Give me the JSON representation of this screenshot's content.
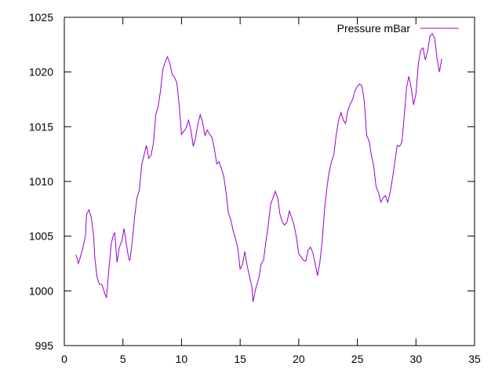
{
  "chart_data": {
    "type": "line",
    "title": "",
    "xlabel": "",
    "ylabel": "",
    "xlim": [
      0,
      35
    ],
    "ylim": [
      995,
      1025
    ],
    "xticks": [
      0,
      5,
      10,
      15,
      20,
      25,
      30,
      35
    ],
    "yticks": [
      995,
      1000,
      1005,
      1010,
      1015,
      1020,
      1025
    ],
    "x_tick_labels": [
      "0",
      "5",
      "10",
      "15",
      "20",
      "25",
      "30",
      "35"
    ],
    "y_tick_labels": [
      "995",
      "1000",
      "1005",
      "1010",
      "1015",
      "1020",
      "1025"
    ],
    "grid": false,
    "legend_position": "top-right",
    "series": [
      {
        "name": "Pressure mBar",
        "color": "#9400d3",
        "points": [
          [
            1.0,
            1003.3
          ],
          [
            1.2,
            1002.5
          ],
          [
            1.4,
            1003.2
          ],
          [
            1.6,
            1004.0
          ],
          [
            1.8,
            1005.0
          ],
          [
            1.9,
            1007.0
          ],
          [
            2.1,
            1007.4
          ],
          [
            2.3,
            1006.7
          ],
          [
            2.5,
            1005.0
          ],
          [
            2.6,
            1003.0
          ],
          [
            2.8,
            1001.2
          ],
          [
            3.0,
            1000.6
          ],
          [
            3.2,
            1000.6
          ],
          [
            3.5,
            999.6
          ],
          [
            3.6,
            999.4
          ],
          [
            3.8,
            1002.0
          ],
          [
            4.0,
            1004.3
          ],
          [
            4.2,
            1005.2
          ],
          [
            4.3,
            1005.3
          ],
          [
            4.5,
            1002.6
          ],
          [
            4.7,
            1004.0
          ],
          [
            4.9,
            1004.5
          ],
          [
            5.1,
            1005.7
          ],
          [
            5.3,
            1004.2
          ],
          [
            5.5,
            1002.9
          ],
          [
            5.6,
            1002.8
          ],
          [
            5.8,
            1004.6
          ],
          [
            6.0,
            1006.8
          ],
          [
            6.2,
            1008.5
          ],
          [
            6.4,
            1009.2
          ],
          [
            6.6,
            1011.5
          ],
          [
            6.8,
            1012.4
          ],
          [
            7.0,
            1013.3
          ],
          [
            7.2,
            1012.1
          ],
          [
            7.4,
            1012.4
          ],
          [
            7.6,
            1013.5
          ],
          [
            7.8,
            1016.1
          ],
          [
            8.0,
            1016.8
          ],
          [
            8.2,
            1018.2
          ],
          [
            8.4,
            1020.2
          ],
          [
            8.6,
            1020.9
          ],
          [
            8.8,
            1021.4
          ],
          [
            9.0,
            1020.8
          ],
          [
            9.2,
            1019.8
          ],
          [
            9.4,
            1019.5
          ],
          [
            9.6,
            1019.0
          ],
          [
            9.8,
            1017.0
          ],
          [
            10.0,
            1014.3
          ],
          [
            10.2,
            1014.6
          ],
          [
            10.4,
            1014.9
          ],
          [
            10.6,
            1015.6
          ],
          [
            10.8,
            1014.7
          ],
          [
            11.0,
            1013.2
          ],
          [
            11.2,
            1014.0
          ],
          [
            11.4,
            1015.3
          ],
          [
            11.6,
            1016.1
          ],
          [
            11.8,
            1015.4
          ],
          [
            12.0,
            1014.2
          ],
          [
            12.2,
            1014.7
          ],
          [
            12.4,
            1014.3
          ],
          [
            12.6,
            1014.0
          ],
          [
            12.8,
            1013.0
          ],
          [
            13.0,
            1011.6
          ],
          [
            13.2,
            1011.8
          ],
          [
            13.4,
            1011.2
          ],
          [
            13.6,
            1010.5
          ],
          [
            13.8,
            1009.0
          ],
          [
            14.0,
            1007.1
          ],
          [
            14.2,
            1006.5
          ],
          [
            14.4,
            1005.5
          ],
          [
            14.6,
            1004.8
          ],
          [
            14.8,
            1003.9
          ],
          [
            15.0,
            1002.0
          ],
          [
            15.2,
            1002.4
          ],
          [
            15.4,
            1003.6
          ],
          [
            15.6,
            1002.3
          ],
          [
            15.8,
            1001.3
          ],
          [
            16.0,
            1000.4
          ],
          [
            16.1,
            999.0
          ],
          [
            16.3,
            1000.1
          ],
          [
            16.6,
            1001.2
          ],
          [
            16.8,
            1002.5
          ],
          [
            17.0,
            1002.8
          ],
          [
            17.2,
            1004.5
          ],
          [
            17.4,
            1006.0
          ],
          [
            17.6,
            1007.9
          ],
          [
            17.8,
            1008.5
          ],
          [
            18.0,
            1009.1
          ],
          [
            18.2,
            1008.5
          ],
          [
            18.4,
            1007.0
          ],
          [
            18.6,
            1006.3
          ],
          [
            18.8,
            1006.0
          ],
          [
            19.0,
            1006.3
          ],
          [
            19.2,
            1007.3
          ],
          [
            19.4,
            1006.7
          ],
          [
            19.6,
            1006.0
          ],
          [
            19.8,
            1004.9
          ],
          [
            20.0,
            1003.4
          ],
          [
            20.2,
            1003.1
          ],
          [
            20.4,
            1002.8
          ],
          [
            20.6,
            1002.7
          ],
          [
            20.8,
            1003.7
          ],
          [
            21.0,
            1004.0
          ],
          [
            21.2,
            1003.5
          ],
          [
            21.4,
            1002.5
          ],
          [
            21.6,
            1001.4
          ],
          [
            21.8,
            1002.6
          ],
          [
            22.0,
            1004.5
          ],
          [
            22.2,
            1007.4
          ],
          [
            22.4,
            1009.4
          ],
          [
            22.6,
            1010.9
          ],
          [
            22.8,
            1011.8
          ],
          [
            23.0,
            1012.5
          ],
          [
            23.2,
            1014.3
          ],
          [
            23.4,
            1015.6
          ],
          [
            23.6,
            1016.3
          ],
          [
            23.8,
            1015.6
          ],
          [
            24.0,
            1015.3
          ],
          [
            24.2,
            1016.5
          ],
          [
            24.4,
            1017.1
          ],
          [
            24.6,
            1017.5
          ],
          [
            24.8,
            1018.3
          ],
          [
            25.0,
            1018.7
          ],
          [
            25.2,
            1018.9
          ],
          [
            25.4,
            1018.7
          ],
          [
            25.6,
            1017.3
          ],
          [
            25.8,
            1014.2
          ],
          [
            26.0,
            1013.7
          ],
          [
            26.2,
            1012.4
          ],
          [
            26.4,
            1011.4
          ],
          [
            26.6,
            1009.5
          ],
          [
            26.8,
            1009.0
          ],
          [
            27.0,
            1008.1
          ],
          [
            27.2,
            1008.5
          ],
          [
            27.4,
            1008.7
          ],
          [
            27.6,
            1008.1
          ],
          [
            27.8,
            1009.0
          ],
          [
            28.0,
            1010.3
          ],
          [
            28.2,
            1011.8
          ],
          [
            28.4,
            1013.3
          ],
          [
            28.6,
            1013.2
          ],
          [
            28.8,
            1013.6
          ],
          [
            29.0,
            1015.9
          ],
          [
            29.2,
            1018.6
          ],
          [
            29.4,
            1019.6
          ],
          [
            29.6,
            1018.5
          ],
          [
            29.8,
            1017.0
          ],
          [
            30.0,
            1018.0
          ],
          [
            30.2,
            1020.7
          ],
          [
            30.4,
            1022.0
          ],
          [
            30.6,
            1022.2
          ],
          [
            30.8,
            1021.1
          ],
          [
            31.0,
            1021.9
          ],
          [
            31.2,
            1023.3
          ],
          [
            31.4,
            1023.5
          ],
          [
            31.6,
            1023.1
          ],
          [
            31.8,
            1021.2
          ],
          [
            32.0,
            1020.0
          ],
          [
            32.2,
            1021.2
          ]
        ]
      }
    ]
  }
}
